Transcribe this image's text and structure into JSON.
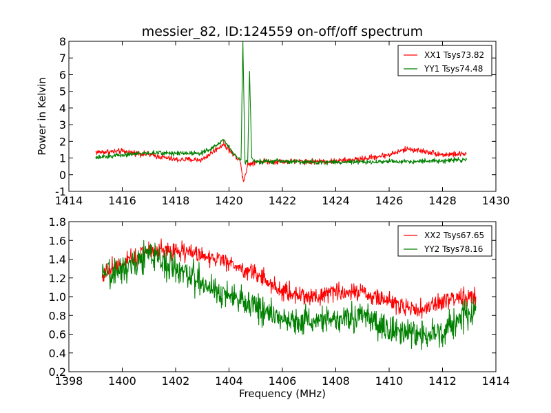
{
  "figure": {
    "title": "messier_82, ID:124559 on-off/off spectrum",
    "xlabel": "Frequency (MHz)",
    "ylabel": "Power in Kelvin"
  },
  "colors": {
    "series_1": "#ff0000",
    "series_2": "#008000"
  },
  "chart_data": [
    {
      "type": "line",
      "title": "messier_82, ID:124559 on-off/off spectrum",
      "xlabel": "",
      "ylabel": "Power in Kelvin",
      "xlim": [
        1414,
        1430
      ],
      "ylim": [
        -1,
        8
      ],
      "xticks": [
        1414,
        1416,
        1418,
        1420,
        1422,
        1424,
        1426,
        1428,
        1430
      ],
      "yticks": [
        -1,
        0,
        1,
        2,
        3,
        4,
        5,
        6,
        7,
        8
      ],
      "grid": false,
      "legend_position": "top-right",
      "x_range": [
        1415.0,
        1428.9
      ],
      "series": [
        {
          "name": "XX1 Tsys73.82",
          "color": "#ff0000",
          "x": [
            1415.0,
            1416.0,
            1417.0,
            1418.0,
            1419.0,
            1419.5,
            1419.8,
            1420.1,
            1420.4,
            1420.55,
            1420.7,
            1421.0,
            1422.0,
            1423.0,
            1424.0,
            1425.0,
            1426.0,
            1426.7,
            1427.5,
            1428.0,
            1428.9
          ],
          "values": [
            1.35,
            1.4,
            1.2,
            0.9,
            0.9,
            1.5,
            1.85,
            1.3,
            0.9,
            -0.4,
            0.6,
            0.8,
            0.8,
            0.8,
            0.8,
            0.95,
            1.2,
            1.55,
            1.35,
            1.2,
            1.25
          ],
          "noise": 0.12
        },
        {
          "name": "YY1 Tsys74.48",
          "color": "#008000",
          "x": [
            1415.0,
            1416.0,
            1417.0,
            1418.0,
            1418.9,
            1419.3,
            1419.8,
            1420.2,
            1420.45,
            1420.52,
            1420.6,
            1420.7,
            1420.77,
            1420.85,
            1421.0,
            1422.0,
            1423.0,
            1424.0,
            1425.0,
            1426.0,
            1427.0,
            1428.0,
            1428.9
          ],
          "values": [
            1.0,
            1.2,
            1.3,
            1.3,
            1.3,
            1.5,
            2.1,
            1.2,
            0.9,
            8.0,
            0.7,
            0.8,
            6.2,
            1.0,
            0.8,
            0.8,
            0.75,
            0.75,
            0.75,
            0.8,
            0.8,
            0.85,
            0.9
          ],
          "noise": 0.1
        }
      ]
    },
    {
      "type": "line",
      "title": "",
      "xlabel": "Frequency (MHz)",
      "ylabel": "",
      "xlim": [
        1398,
        1414
      ],
      "ylim": [
        0.2,
        1.8
      ],
      "xticks": [
        1398,
        1400,
        1402,
        1404,
        1406,
        1408,
        1410,
        1412,
        1414
      ],
      "yticks": [
        0.2,
        0.4,
        0.6,
        0.8,
        1.0,
        1.2,
        1.4,
        1.6,
        1.8
      ],
      "grid": false,
      "legend_position": "top-right",
      "x_range": [
        1399.25,
        1413.25
      ],
      "series": [
        {
          "name": "XX2 Tsys67.65",
          "color": "#ff0000",
          "x": [
            1399.25,
            1400.0,
            1401.0,
            1402.0,
            1403.0,
            1404.0,
            1405.0,
            1406.0,
            1407.0,
            1408.0,
            1409.0,
            1410.0,
            1411.0,
            1412.0,
            1413.25
          ],
          "values": [
            1.25,
            1.35,
            1.5,
            1.5,
            1.45,
            1.35,
            1.25,
            1.05,
            1.0,
            1.05,
            1.05,
            0.95,
            0.85,
            0.95,
            1.0
          ],
          "noise": 0.07
        },
        {
          "name": "YY2 Tsys78.16",
          "color": "#008000",
          "x": [
            1399.25,
            1400.0,
            1401.0,
            1402.0,
            1403.0,
            1404.0,
            1405.0,
            1406.0,
            1407.0,
            1408.0,
            1409.0,
            1410.0,
            1411.0,
            1412.0,
            1413.25
          ],
          "values": [
            1.2,
            1.3,
            1.45,
            1.3,
            1.15,
            1.0,
            0.9,
            0.75,
            0.75,
            0.75,
            0.8,
            0.65,
            0.6,
            0.6,
            0.9
          ],
          "noise": 0.11
        }
      ]
    }
  ]
}
